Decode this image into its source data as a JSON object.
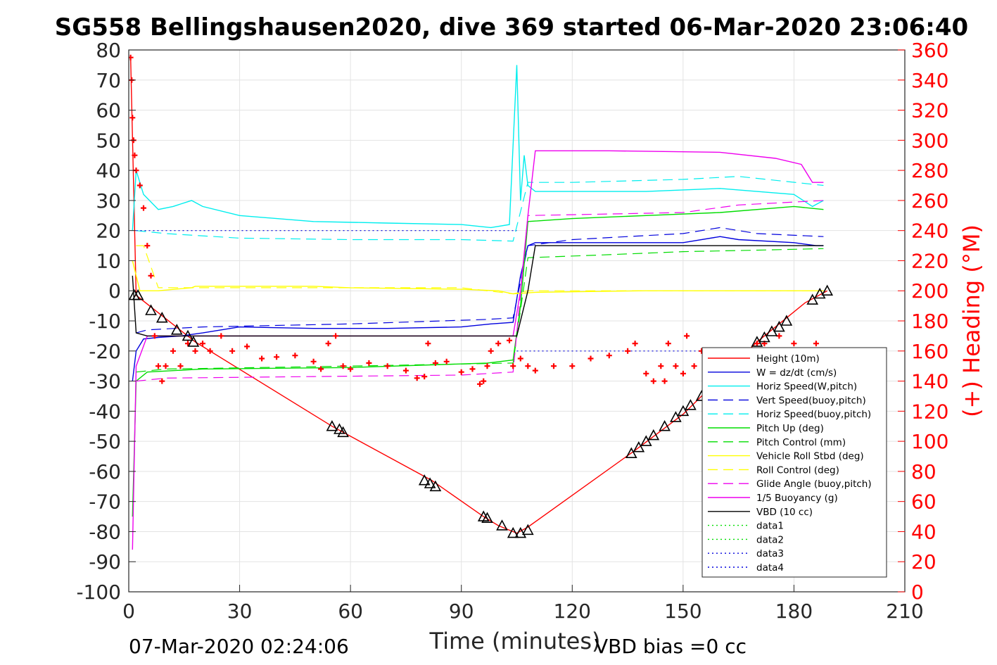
{
  "chart_data": {
    "type": "line",
    "title": "SG558 Bellingshausen2020, dive 369 started 06-Mar-2020 23:06:40",
    "xlabel": "Time (minutes)",
    "ylabel": "",
    "y2label": "(+) Heading (°M)",
    "xlim": [
      0,
      210
    ],
    "ylim": [
      -100,
      80
    ],
    "y2lim": [
      0,
      360
    ],
    "x_ticks": [
      "0",
      "30",
      "60",
      "90",
      "120",
      "150",
      "180",
      "210"
    ],
    "y_ticks": [
      "80",
      "70",
      "60",
      "50",
      "40",
      "30",
      "20",
      "10",
      "0",
      "-10",
      "-20",
      "-30",
      "-40",
      "-50",
      "-60",
      "-70",
      "-80",
      "-90",
      "-100"
    ],
    "y2_ticks": [
      "360",
      "340",
      "320",
      "300",
      "280",
      "260",
      "240",
      "220",
      "200",
      "180",
      "160",
      "140",
      "120",
      "100",
      "80",
      "60",
      "40",
      "20",
      "0"
    ],
    "grid": true,
    "legend_position": "lower-right",
    "footer_left": "07-Mar-2020 02:24:06",
    "footer_right": "VBD bias =0 cc",
    "colors": {
      "red": "#ff0000",
      "blue": "#0000dd",
      "cyan": "#00eeee",
      "green": "#00dd00",
      "yellow": "#ffff00",
      "magenta": "#ee00ee",
      "black": "#000000",
      "grid": "#e3e3e3"
    },
    "series": [
      {
        "name": "Height (10m)",
        "color": "#ff0000",
        "style": "solid",
        "x": [
          0.5,
          2,
          18,
          55,
          82,
          96,
          100,
          105,
          108,
          137,
          150,
          170,
          183,
          189
        ],
        "y": [
          78,
          -1.5,
          -17,
          -45,
          -63,
          -75,
          -78,
          -80.5,
          -78.5,
          -53,
          -41,
          -17,
          -4,
          0
        ]
      },
      {
        "name": "W = dz/dt (cm/s)",
        "color": "#0000dd",
        "style": "solid",
        "x": [
          1,
          2,
          4,
          8,
          14,
          20,
          30,
          50,
          70,
          90,
          98,
          104,
          106,
          108,
          110,
          130,
          150,
          160,
          165,
          180,
          186,
          188
        ],
        "y": [
          -30,
          -20,
          -16,
          -15.5,
          -15,
          -14,
          -12,
          -12.5,
          -12.5,
          -12,
          -11,
          -10.5,
          5,
          15,
          16,
          16,
          16,
          18,
          17,
          16,
          15,
          15
        ]
      },
      {
        "name": "Horiz Speed(W,pitch)",
        "color": "#00eeee",
        "style": "solid",
        "x": [
          1,
          2,
          4,
          8,
          12,
          17,
          20,
          30,
          50,
          70,
          90,
          98,
          103,
          105,
          106,
          107,
          108,
          110,
          120,
          140,
          160,
          180,
          185,
          188
        ],
        "y": [
          20,
          40,
          32,
          27,
          28,
          30,
          28,
          25,
          23,
          22.5,
          22,
          21,
          22,
          75,
          30,
          45,
          35,
          33,
          33,
          33,
          34,
          32,
          28,
          30
        ]
      },
      {
        "name": "Vert Speed(buoy,pitch)",
        "color": "#0000dd",
        "style": "dashed",
        "x": [
          2,
          5,
          20,
          60,
          97,
          104,
          108,
          120,
          150,
          160,
          170,
          188
        ],
        "y": [
          -14,
          -13,
          -12,
          -11,
          -9.5,
          -9,
          15,
          17,
          19,
          21,
          19,
          18
        ]
      },
      {
        "name": "Horiz Speed(buoy,pitch)",
        "color": "#00eeee",
        "style": "dashed",
        "x": [
          2,
          10,
          30,
          60,
          90,
          104,
          108,
          120,
          150,
          165,
          188
        ],
        "y": [
          20,
          19,
          17.5,
          17,
          17,
          16.5,
          36,
          36,
          37,
          38,
          35
        ]
      },
      {
        "name": "Pitch Up (deg)",
        "color": "#00dd00",
        "style": "solid",
        "x": [
          1,
          2,
          5,
          20,
          60,
          97,
          104,
          106,
          108,
          120,
          140,
          160,
          180,
          188
        ],
        "y": [
          -75,
          -30,
          -27,
          -26,
          -25.5,
          -24,
          -23,
          -5,
          23,
          24,
          25,
          26,
          28,
          27
        ]
      },
      {
        "name": "Pitch Control (mm)",
        "color": "#00dd00",
        "style": "dashed",
        "x": [
          2,
          10,
          60,
          104,
          108,
          130,
          150,
          170,
          188
        ],
        "y": [
          -27,
          -26,
          -25,
          -24,
          11,
          12,
          13,
          13.5,
          14
        ]
      },
      {
        "name": "Vehicle Roll Stbd (deg)",
        "color": "#ffff00",
        "style": "solid",
        "x": [
          1,
          3,
          8,
          17,
          18,
          30,
          50,
          60,
          90,
          100,
          104,
          110,
          140,
          160,
          180,
          188
        ],
        "y": [
          10,
          0,
          0,
          1,
          1.5,
          1.5,
          1.5,
          1,
          0.5,
          0,
          -1,
          -0.5,
          0,
          0,
          0,
          0
        ]
      },
      {
        "name": "Roll Control (deg)",
        "color": "#ffff00",
        "style": "dashed",
        "x": [
          2,
          4,
          8,
          18,
          19,
          50,
          60,
          90,
          104,
          108,
          150,
          188
        ],
        "y": [
          15,
          15,
          1,
          1,
          1,
          1,
          1,
          1,
          -1,
          0,
          0,
          0
        ]
      },
      {
        "name": "Glide Angle (buoy,pitch)",
        "color": "#ee00ee",
        "style": "dashed",
        "x": [
          2,
          10,
          50,
          90,
          104,
          108,
          130,
          150,
          165,
          188
        ],
        "y": [
          -30,
          -29,
          -28.5,
          -28,
          -27,
          25,
          25.5,
          26,
          28.5,
          30
        ]
      },
      {
        "name": "1/5 Buoyancy (g)",
        "color": "#ee00ee",
        "style": "solid",
        "x": [
          1,
          2,
          5,
          20,
          60,
          100,
          104,
          106,
          108,
          110,
          130,
          160,
          175,
          182,
          185,
          188
        ],
        "y": [
          -86,
          -25,
          -15,
          -15,
          -15,
          -15,
          -15,
          0,
          25,
          46.5,
          46.5,
          46,
          44,
          42,
          36,
          36
        ]
      },
      {
        "name": "VBD (10 cc)",
        "color": "#000000",
        "style": "solid",
        "x": [
          1,
          2,
          5,
          105,
          108,
          110,
          188
        ],
        "y": [
          5,
          -14,
          -15,
          -15,
          0,
          15,
          15
        ]
      },
      {
        "name": "data1",
        "color": "#00dd00",
        "style": "dotted",
        "x": [],
        "y": []
      },
      {
        "name": "data2",
        "color": "#00dd00",
        "style": "dotted",
        "x": [],
        "y": []
      },
      {
        "name": "data3",
        "color": "#0000dd",
        "style": "dotted",
        "x": [
          2,
          105
        ],
        "y": [
          20,
          20
        ]
      },
      {
        "name": "data4",
        "color": "#0000dd",
        "style": "dotted",
        "x": [
          105,
          185
        ],
        "y": [
          -20,
          -20
        ]
      }
    ],
    "heading": {
      "name": "(+) Heading (°M)",
      "color": "#ff0000",
      "axis": "right",
      "x": [
        0.5,
        0.8,
        1,
        1.3,
        1.6,
        2,
        3,
        4,
        5,
        6,
        7,
        8,
        9,
        10,
        12,
        14,
        16,
        18,
        20,
        22,
        25,
        28,
        32,
        36,
        40,
        45,
        50,
        52,
        54,
        56,
        58,
        60,
        65,
        70,
        75,
        78,
        80,
        81,
        83,
        86,
        90,
        93,
        95,
        96,
        97,
        98,
        100,
        103,
        104,
        106,
        108,
        110,
        115,
        120,
        125,
        130,
        135,
        137,
        140,
        142,
        144,
        145,
        146,
        148,
        150,
        151,
        153,
        155,
        157,
        158,
        160,
        162,
        164,
        168,
        170,
        172,
        176,
        180,
        184,
        186,
        187
      ],
      "y": [
        355,
        340,
        315,
        300,
        290,
        280,
        270,
        255,
        230,
        210,
        170,
        150,
        140,
        150,
        160,
        150,
        165,
        160,
        165,
        160,
        170,
        160,
        163,
        155,
        156,
        157,
        153,
        148,
        165,
        170,
        150,
        148,
        152,
        150,
        147,
        142,
        143,
        165,
        152,
        153,
        146,
        148,
        138,
        140,
        150,
        160,
        165,
        167,
        150,
        155,
        150,
        147,
        150,
        150,
        155,
        157,
        160,
        165,
        145,
        140,
        150,
        140,
        165,
        150,
        145,
        170,
        150,
        160,
        160,
        145,
        160,
        160,
        150,
        160,
        165,
        165,
        170,
        165,
        155,
        165,
        160
      ]
    },
    "markers": {
      "series": "Height (10m)",
      "x": [
        1.5,
        2.5,
        6,
        9,
        13,
        16,
        17.5,
        55,
        57,
        58,
        80,
        81.5,
        83,
        96,
        97,
        101,
        104,
        106,
        108,
        136,
        138,
        140,
        142,
        145,
        148,
        150,
        152,
        155,
        170,
        172,
        174,
        176,
        178,
        185,
        187,
        189
      ],
      "y": [
        -1.5,
        -1.5,
        -6.5,
        -9,
        -13,
        -15,
        -17,
        -45,
        -46,
        -47,
        -63,
        -64,
        -65,
        -75,
        -75.5,
        -78,
        -80.5,
        -80.5,
        -79.5,
        -54,
        -52,
        -50,
        -48,
        -45,
        -42,
        -40,
        -38,
        -35,
        -17,
        -15.5,
        -13.5,
        -12,
        -10,
        -3,
        -1,
        0
      ]
    }
  }
}
